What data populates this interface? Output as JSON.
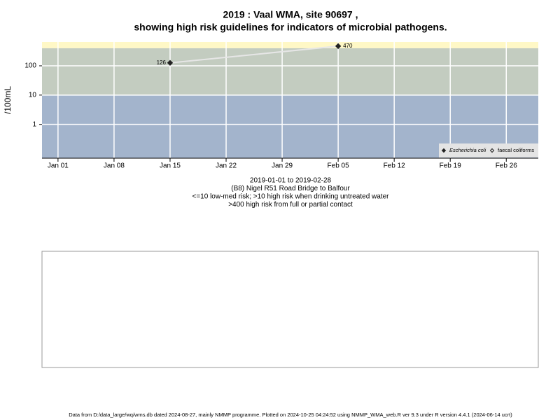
{
  "chart_data": {
    "type": "line",
    "title": "2019 : Vaal WMA, site 90697 ,",
    "subtitle": "showing high risk guidelines for indicators of microbial pathogens.",
    "y_label": "/100mL",
    "log_y": true,
    "grid": true,
    "legend": "bottom-right",
    "x": [
      "2019-01-15",
      "2019-02-05"
    ],
    "series": [
      {
        "name": "Escherichia coli",
        "color": "#222222",
        "marker": "filled",
        "values": [
          126,
          470
        ]
      },
      {
        "name": "faecal coliforms",
        "color": "#222222",
        "marker": "open",
        "values": [
          null,
          null
        ]
      }
    ],
    "line_color": "#e6e6e6",
    "xlim": [
      "2018-12-30",
      "2019-03-02"
    ],
    "xticks": [
      {
        "value": "2019-01-01",
        "label": "Jan 01"
      },
      {
        "value": "2019-01-08",
        "label": "Jan 08"
      },
      {
        "value": "2019-01-15",
        "label": "Jan 15"
      },
      {
        "value": "2019-01-22",
        "label": "Jan 22"
      },
      {
        "value": "2019-01-29",
        "label": "Jan 29"
      },
      {
        "value": "2019-02-05",
        "label": "Feb 05"
      },
      {
        "value": "2019-02-12",
        "label": "Feb 12"
      },
      {
        "value": "2019-02-19",
        "label": "Feb 19"
      },
      {
        "value": "2019-02-26",
        "label": "Feb 26"
      }
    ],
    "ylim": [
      0.07,
      650
    ],
    "yticks": [
      1,
      10,
      100
    ],
    "thresholds": [
      10,
      400
    ],
    "band_colors": [
      "#a3b4cc",
      "#c3ccc0",
      "#fff8c6"
    ],
    "notes": [
      "2019-01-01 to 2019-02-28",
      "(B8) Nigel R51 Road Bridge to Balfour",
      "<=10 low-med risk; >10 high risk when drinking untreated water",
      ">400 high risk from full or partial contact"
    ],
    "footer": "Data from D:/data_large/wq/wms.db dated 2024-08-27, mainly NMMP programme. Plotted on 2024-10-25 04:24:52 using NMMP_WMA_web.R ver 9.3 under R version 4.4.1 (2024-06-14 ucrt)"
  }
}
